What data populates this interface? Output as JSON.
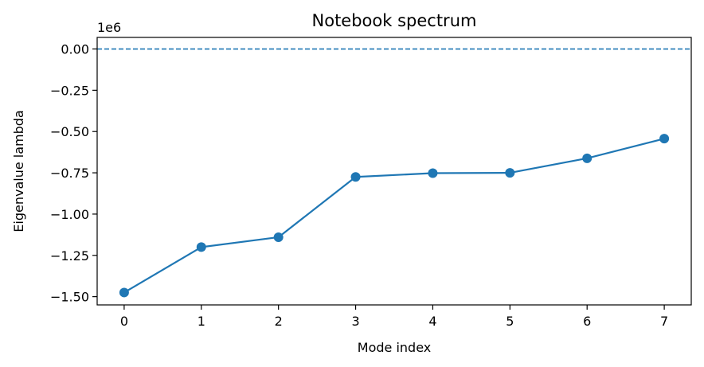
{
  "chart_data": {
    "type": "line",
    "title": "Notebook spectrum",
    "xlabel": "Mode index",
    "ylabel": "Eigenvalue lambda",
    "offset_label": "1e6",
    "x": [
      0,
      1,
      2,
      3,
      4,
      5,
      6,
      7
    ],
    "series": [
      {
        "values": [
          -1.475,
          -1.2,
          -1.14,
          -0.775,
          -0.752,
          -0.75,
          -0.662,
          -0.543
        ],
        "color": "#1f77b4",
        "marker": "circle"
      }
    ],
    "reference_line": {
      "y": 0.0,
      "style": "dashed",
      "color": "#1f77b4"
    },
    "xlim": [
      -0.35,
      7.35
    ],
    "ylim": [
      -1.55,
      0.07
    ],
    "xticks": [
      0,
      1,
      2,
      3,
      4,
      5,
      6,
      7
    ],
    "xtick_labels": [
      "0",
      "1",
      "2",
      "3",
      "4",
      "5",
      "6",
      "7"
    ],
    "yticks": [
      0.0,
      -0.25,
      -0.5,
      -0.75,
      -1.0,
      -1.25,
      -1.5
    ],
    "ytick_labels": [
      "0.00",
      "−0.25",
      "−0.50",
      "−0.75",
      "−1.00",
      "−1.25",
      "−1.50"
    ],
    "grid": false,
    "legend": false
  }
}
